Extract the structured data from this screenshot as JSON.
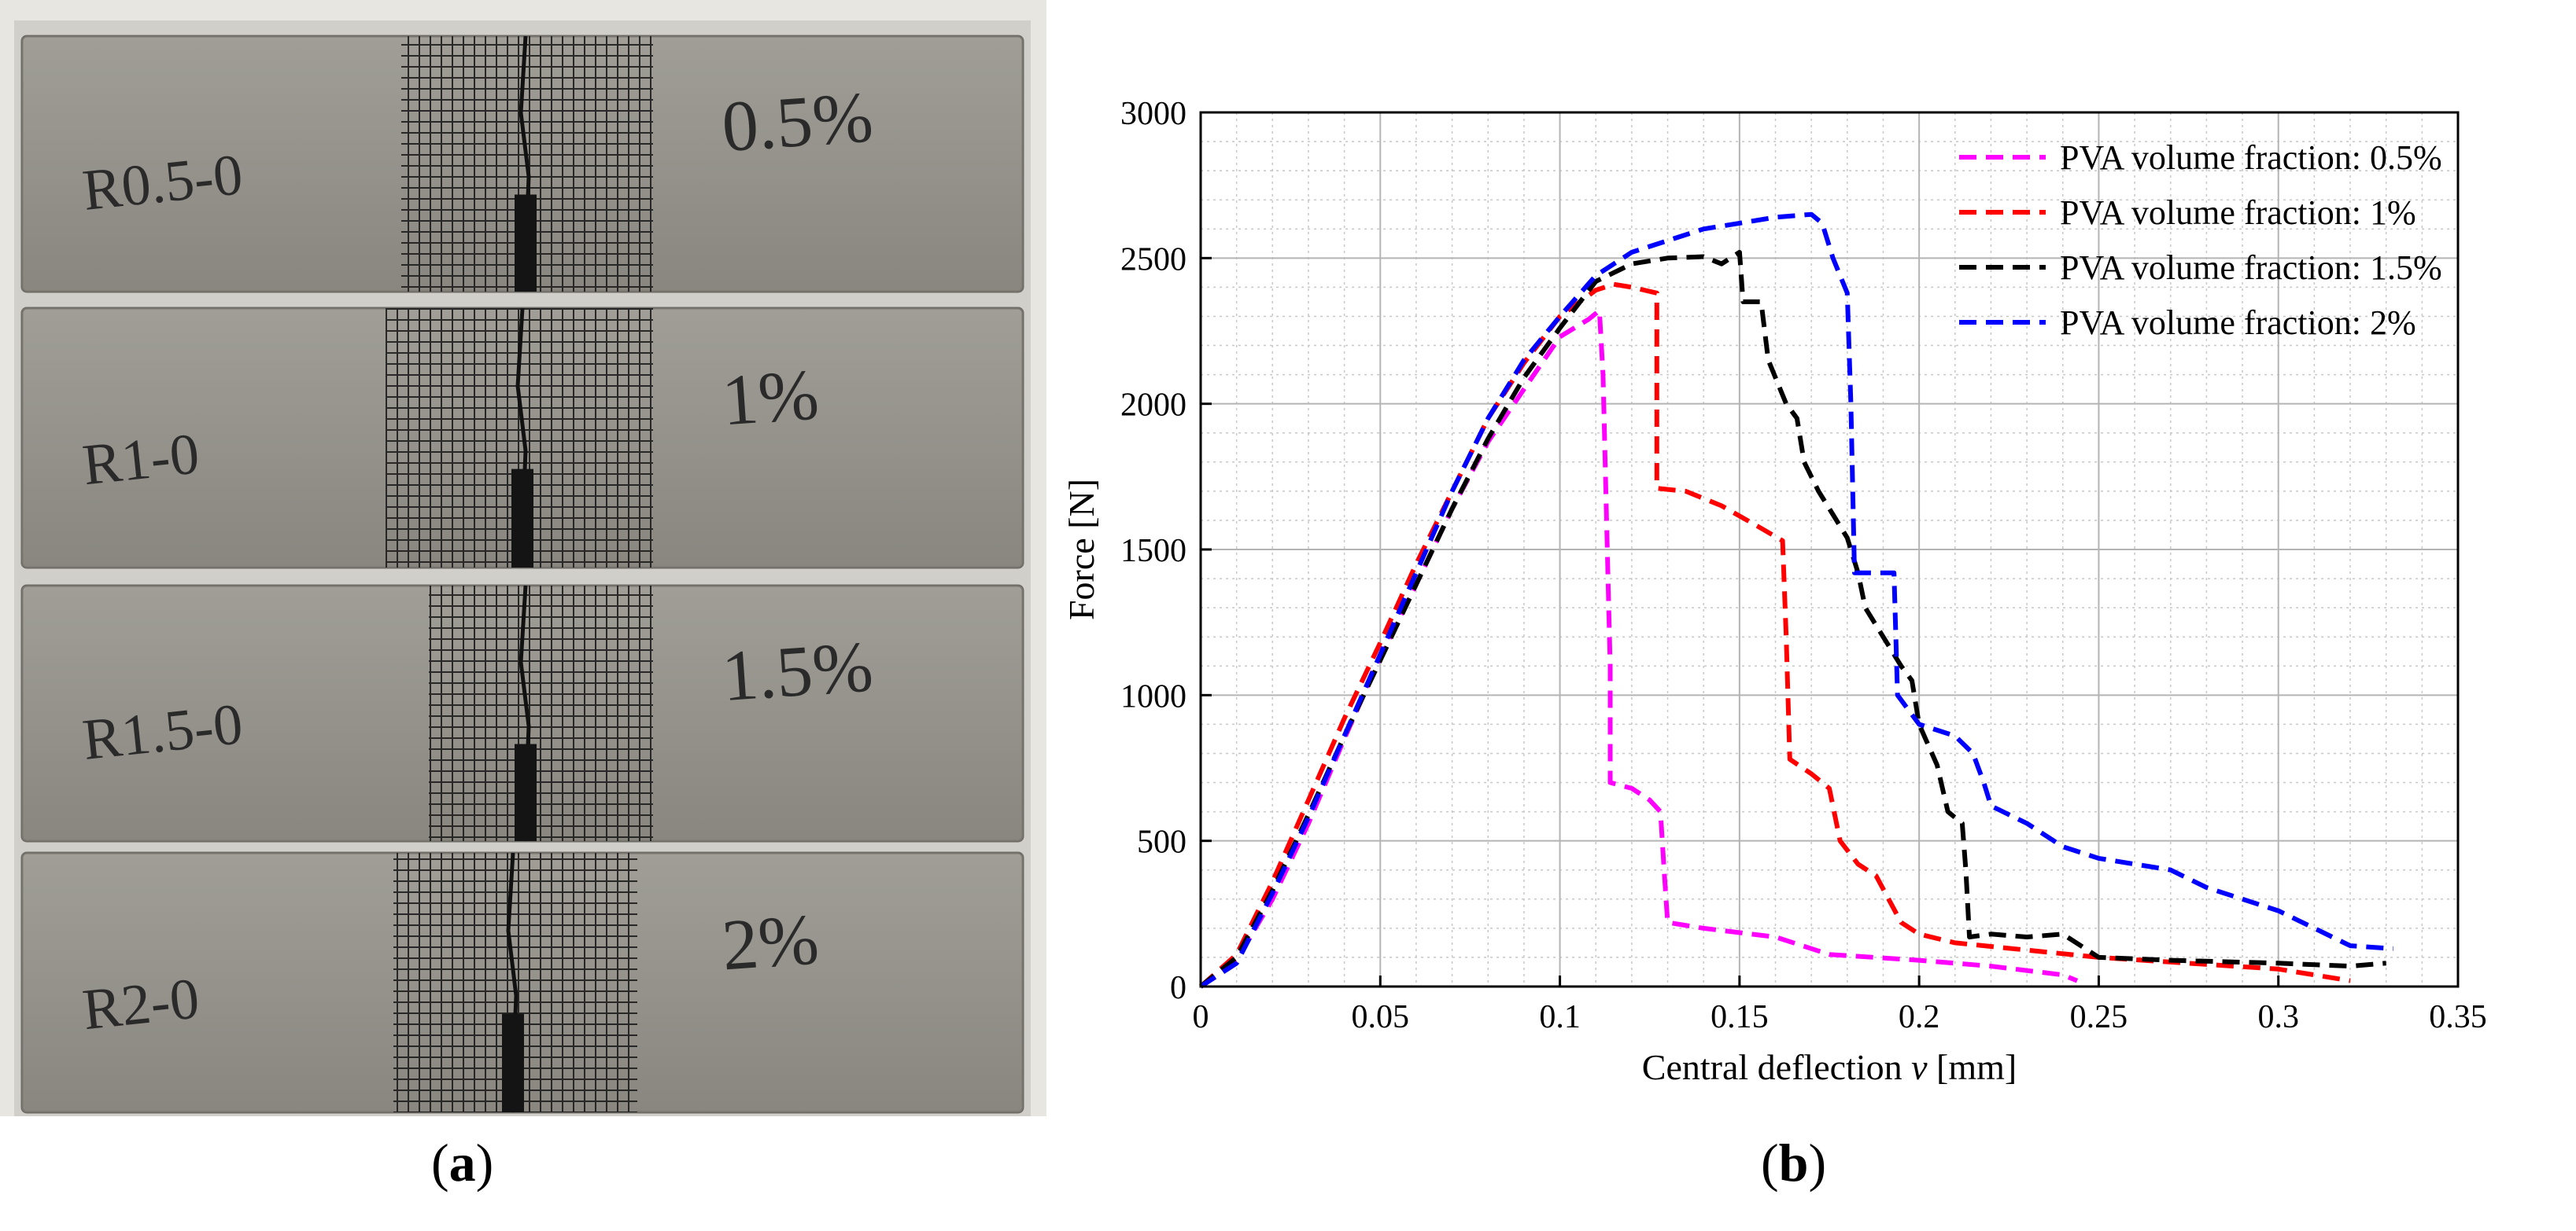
{
  "panels": {
    "a": {
      "label": "a",
      "specimens": [
        {
          "id": "R0.5-0",
          "mark": "R0.5-0",
          "fraction_mark": "0.5%"
        },
        {
          "id": "R1-0",
          "mark": "R1-0",
          "fraction_mark": "1%"
        },
        {
          "id": "R1.5-0",
          "mark": "R1.5-0",
          "fraction_mark": "1.5%"
        },
        {
          "id": "R2-0",
          "mark": "R2-0",
          "fraction_mark": "2%"
        }
      ]
    },
    "b": {
      "label": "b"
    }
  },
  "chart_data": {
    "type": "line",
    "title": "",
    "xlabel_pre": "Central deflection ",
    "xlabel_var": "v",
    "xlabel_post": " [mm]",
    "ylabel": "Force [N]",
    "xlim": [
      0,
      0.35
    ],
    "ylim": [
      0,
      3000
    ],
    "xticks": [
      "0",
      "0.05",
      "0.1",
      "0.15",
      "0.2",
      "0.25",
      "0.3",
      "0.35"
    ],
    "yticks": [
      "0",
      "500",
      "1000",
      "1500",
      "2000",
      "2500",
      "3000"
    ],
    "grid": true,
    "minor_grid": true,
    "legend_position": "top-right",
    "line_style": "dashed",
    "series": [
      {
        "name": "PVA volume fraction: 0.5%",
        "color": "#ff00ff",
        "points": [
          [
            0,
            0
          ],
          [
            0.01,
            90
          ],
          [
            0.02,
            300
          ],
          [
            0.03,
            560
          ],
          [
            0.04,
            850
          ],
          [
            0.05,
            1130
          ],
          [
            0.06,
            1380
          ],
          [
            0.07,
            1640
          ],
          [
            0.08,
            1870
          ],
          [
            0.09,
            2050
          ],
          [
            0.1,
            2230
          ],
          [
            0.108,
            2290
          ],
          [
            0.111,
            2320
          ],
          [
            0.112,
            2100
          ],
          [
            0.113,
            1600
          ],
          [
            0.114,
            1100
          ],
          [
            0.114,
            700
          ],
          [
            0.12,
            680
          ],
          [
            0.125,
            640
          ],
          [
            0.128,
            600
          ],
          [
            0.129,
            400
          ],
          [
            0.13,
            220
          ],
          [
            0.14,
            200
          ],
          [
            0.16,
            170
          ],
          [
            0.17,
            130
          ],
          [
            0.175,
            110
          ],
          [
            0.2,
            90
          ],
          [
            0.22,
            70
          ],
          [
            0.24,
            40
          ],
          [
            0.244,
            20
          ]
        ]
      },
      {
        "name": "PVA volume fraction: 1%",
        "color": "#ff0000",
        "points": [
          [
            0,
            0
          ],
          [
            0.01,
            110
          ],
          [
            0.02,
            360
          ],
          [
            0.03,
            640
          ],
          [
            0.04,
            920
          ],
          [
            0.05,
            1180
          ],
          [
            0.06,
            1450
          ],
          [
            0.07,
            1700
          ],
          [
            0.08,
            1950
          ],
          [
            0.09,
            2140
          ],
          [
            0.1,
            2300
          ],
          [
            0.11,
            2390
          ],
          [
            0.115,
            2410
          ],
          [
            0.12,
            2400
          ],
          [
            0.127,
            2380
          ],
          [
            0.127,
            2000
          ],
          [
            0.127,
            1710
          ],
          [
            0.135,
            1700
          ],
          [
            0.145,
            1650
          ],
          [
            0.155,
            1580
          ],
          [
            0.162,
            1530
          ],
          [
            0.163,
            1200
          ],
          [
            0.164,
            780
          ],
          [
            0.17,
            730
          ],
          [
            0.175,
            680
          ],
          [
            0.178,
            500
          ],
          [
            0.183,
            420
          ],
          [
            0.188,
            380
          ],
          [
            0.195,
            220
          ],
          [
            0.2,
            180
          ],
          [
            0.21,
            150
          ],
          [
            0.25,
            100
          ],
          [
            0.3,
            60
          ],
          [
            0.32,
            20
          ]
        ]
      },
      {
        "name": "PVA volume fraction: 1.5%",
        "color": "#000000",
        "points": [
          [
            0,
            0
          ],
          [
            0.01,
            100
          ],
          [
            0.02,
            330
          ],
          [
            0.03,
            590
          ],
          [
            0.04,
            860
          ],
          [
            0.05,
            1120
          ],
          [
            0.06,
            1380
          ],
          [
            0.07,
            1640
          ],
          [
            0.08,
            1880
          ],
          [
            0.09,
            2090
          ],
          [
            0.1,
            2260
          ],
          [
            0.11,
            2420
          ],
          [
            0.12,
            2480
          ],
          [
            0.13,
            2500
          ],
          [
            0.14,
            2505
          ],
          [
            0.145,
            2480
          ],
          [
            0.15,
            2520
          ],
          [
            0.151,
            2350
          ],
          [
            0.156,
            2350
          ],
          [
            0.158,
            2150
          ],
          [
            0.163,
            2000
          ],
          [
            0.166,
            1950
          ],
          [
            0.168,
            1800
          ],
          [
            0.172,
            1700
          ],
          [
            0.176,
            1620
          ],
          [
            0.18,
            1540
          ],
          [
            0.183,
            1420
          ],
          [
            0.185,
            1300
          ],
          [
            0.19,
            1200
          ],
          [
            0.195,
            1100
          ],
          [
            0.198,
            1050
          ],
          [
            0.2,
            900
          ],
          [
            0.205,
            760
          ],
          [
            0.208,
            600
          ],
          [
            0.212,
            560
          ],
          [
            0.213,
            400
          ],
          [
            0.214,
            170
          ],
          [
            0.22,
            180
          ],
          [
            0.23,
            170
          ],
          [
            0.24,
            180
          ],
          [
            0.25,
            100
          ],
          [
            0.27,
            90
          ],
          [
            0.3,
            80
          ],
          [
            0.32,
            70
          ],
          [
            0.33,
            80
          ]
        ]
      },
      {
        "name": "PVA volume fraction: 2%",
        "color": "#0000ff",
        "points": [
          [
            0,
            0
          ],
          [
            0.01,
            80
          ],
          [
            0.02,
            320
          ],
          [
            0.03,
            580
          ],
          [
            0.04,
            860
          ],
          [
            0.05,
            1140
          ],
          [
            0.06,
            1420
          ],
          [
            0.07,
            1700
          ],
          [
            0.08,
            1950
          ],
          [
            0.09,
            2150
          ],
          [
            0.1,
            2300
          ],
          [
            0.11,
            2440
          ],
          [
            0.12,
            2520
          ],
          [
            0.13,
            2560
          ],
          [
            0.14,
            2600
          ],
          [
            0.15,
            2620
          ],
          [
            0.16,
            2640
          ],
          [
            0.17,
            2650
          ],
          [
            0.173,
            2620
          ],
          [
            0.176,
            2500
          ],
          [
            0.18,
            2380
          ],
          [
            0.181,
            2000
          ],
          [
            0.182,
            1420
          ],
          [
            0.193,
            1420
          ],
          [
            0.194,
            1000
          ],
          [
            0.2,
            900
          ],
          [
            0.21,
            860
          ],
          [
            0.215,
            800
          ],
          [
            0.218,
            700
          ],
          [
            0.22,
            620
          ],
          [
            0.23,
            560
          ],
          [
            0.24,
            480
          ],
          [
            0.25,
            440
          ],
          [
            0.26,
            420
          ],
          [
            0.27,
            400
          ],
          [
            0.28,
            340
          ],
          [
            0.3,
            260
          ],
          [
            0.32,
            140
          ],
          [
            0.332,
            130
          ]
        ]
      }
    ]
  }
}
